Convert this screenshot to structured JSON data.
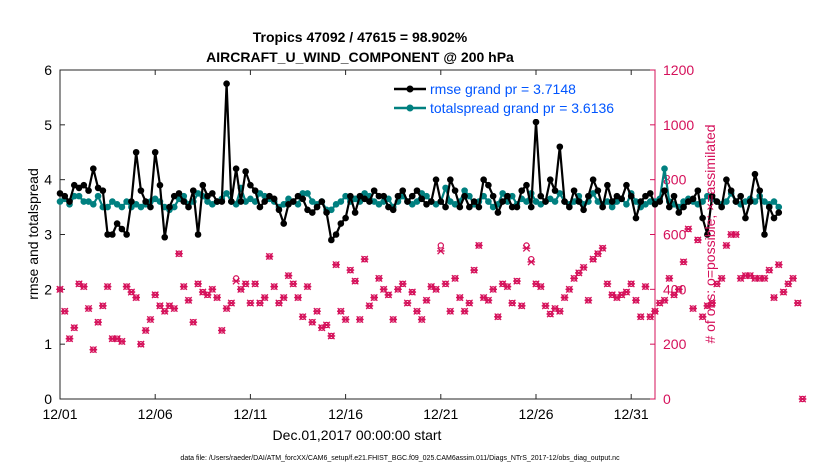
{
  "chart_data": {
    "type": "line",
    "title_line1": "Tropics 47092 / 47615 = 98.902%",
    "title_line2": "AIRCRAFT_U_WIND_COMPONENT @ 200 hPa",
    "xlabel": "Dec.01,2017 00:00:00 start",
    "ylabel_left": "rmse and totalspread",
    "ylabel_right": "# of obs: o=possible; ×=assimilated",
    "x_ticks": [
      "12/01",
      "12/06",
      "12/11",
      "12/16",
      "12/21",
      "12/26",
      "12/31"
    ],
    "x_tick_days": [
      0,
      5,
      10,
      15,
      20,
      25,
      30
    ],
    "xlim": [
      0,
      31.25
    ],
    "ylim_left": [
      0,
      6
    ],
    "y_ticks_left": [
      "0",
      "1",
      "2",
      "3",
      "4",
      "5",
      "6"
    ],
    "ylim_right": [
      0,
      1200
    ],
    "y_ticks_right": [
      "0",
      "200",
      "400",
      "600",
      "800",
      "1000",
      "1200"
    ],
    "footnote": "data file: /Users/raeder/DAI/ATM_forcXX/CAM6_setup/f.e21.FHIST_BGC.f09_025.CAM6assim.011/Diags_NTrS_2017-12/obs_diag_output.nc",
    "legend": [
      {
        "name": "rmse grand pr = 3.7148",
        "color": "#000000"
      },
      {
        "name": "totalspread grand pr = 3.6136",
        "color": "#008080"
      }
    ],
    "colors": {
      "rmse": "#000000",
      "spread": "#008080",
      "obs": "#d5105a",
      "legend_text": "#0055ff"
    },
    "series": [
      {
        "name": "rmse",
        "x0": 0,
        "dx": 0.25,
        "values": [
          3.75,
          3.7,
          3.6,
          3.9,
          3.85,
          3.9,
          3.8,
          4.2,
          3.85,
          3.8,
          3.0,
          3.0,
          3.2,
          3.1,
          3.0,
          3.6,
          4.5,
          3.8,
          3.6,
          3.5,
          4.5,
          3.9,
          2.95,
          3.5,
          3.7,
          3.75,
          3.6,
          3.5,
          3.8,
          3.0,
          3.9,
          3.7,
          3.75,
          3.6,
          3.6,
          5.75,
          3.6,
          4.2,
          3.6,
          4.15,
          3.9,
          3.8,
          3.5,
          3.6,
          3.7,
          3.65,
          3.45,
          3.2,
          3.55,
          3.6,
          3.7,
          3.65,
          3.45,
          3.4,
          3.5,
          3.6,
          3.4,
          2.9,
          3.0,
          3.2,
          3.3,
          3.7,
          3.4,
          3.7,
          3.65,
          3.6,
          3.8,
          3.7,
          3.7,
          3.5,
          3.45,
          3.7,
          3.8,
          3.6,
          3.7,
          3.8,
          3.65,
          3.55,
          3.6,
          4.0,
          3.6,
          3.5,
          4.0,
          3.8,
          3.5,
          3.7,
          3.5,
          3.6,
          3.5,
          4.0,
          3.9,
          3.7,
          3.4,
          3.6,
          3.7,
          3.5,
          3.5,
          3.8,
          3.9,
          3.5,
          5.05,
          3.7,
          3.6,
          4.0,
          3.8,
          4.6,
          3.6,
          3.5,
          3.8,
          3.6,
          3.45,
          3.7,
          4.0,
          3.8,
          3.5,
          3.9,
          3.6,
          3.7,
          3.65,
          3.9,
          3.7,
          3.3,
          3.6,
          3.7,
          3.75,
          3.55,
          3.6,
          3.8,
          3.5,
          3.7,
          3.4,
          3.5,
          3.6,
          3.65,
          3.8,
          3.3,
          3.0,
          3.7,
          3.6,
          3.5,
          4.0,
          3.8,
          3.6,
          3.7,
          3.3,
          3.6,
          4.1,
          3.8,
          3.0,
          3.5,
          3.3,
          3.4
        ]
      },
      {
        "name": "totalspread",
        "x0": 0,
        "dx": 0.25,
        "values": [
          3.6,
          3.65,
          3.55,
          3.7,
          3.7,
          3.6,
          3.6,
          3.55,
          3.7,
          3.5,
          3.5,
          3.6,
          3.55,
          3.5,
          3.6,
          3.5,
          3.55,
          3.5,
          3.55,
          3.6,
          3.65,
          3.6,
          3.5,
          3.45,
          3.5,
          3.65,
          3.7,
          3.55,
          3.6,
          3.75,
          3.7,
          3.6,
          3.55,
          3.6,
          3.65,
          3.75,
          3.6,
          3.55,
          3.85,
          3.6,
          3.65,
          3.6,
          3.75,
          3.7,
          3.65,
          3.6,
          3.5,
          3.55,
          3.65,
          3.6,
          3.55,
          3.75,
          3.75,
          3.6,
          3.55,
          3.6,
          3.45,
          3.45,
          3.55,
          3.6,
          3.7,
          3.6,
          3.65,
          3.6,
          3.75,
          3.7,
          3.6,
          3.55,
          3.6,
          3.65,
          3.5,
          3.6,
          3.7,
          3.6,
          3.55,
          3.6,
          3.75,
          3.7,
          3.6,
          3.55,
          3.6,
          3.85,
          3.6,
          3.55,
          3.6,
          3.8,
          3.7,
          3.55,
          3.6,
          3.7,
          3.6,
          3.5,
          3.55,
          3.75,
          3.6,
          3.7,
          3.55,
          3.65,
          3.6,
          3.75,
          3.6,
          3.55,
          3.6,
          3.65,
          3.6,
          3.75,
          3.6,
          3.55,
          3.6,
          3.7,
          3.55,
          3.6,
          3.75,
          3.6,
          3.55,
          3.6,
          3.5,
          3.6,
          3.65,
          3.55,
          3.75,
          3.6,
          3.5,
          3.55,
          3.6,
          3.6,
          3.65,
          4.2,
          3.6,
          3.55,
          3.5,
          3.6,
          3.65,
          3.6,
          3.55,
          3.6,
          3.7,
          3.65,
          3.6,
          3.55,
          3.6,
          3.75,
          3.6,
          3.55,
          3.6,
          3.65,
          3.6,
          3.7,
          3.6,
          3.55,
          3.6,
          3.5
        ]
      },
      {
        "name": "obs_assimilated",
        "x0": 0,
        "dx": 0.25,
        "values": [
          400,
          320,
          220,
          260,
          420,
          410,
          330,
          180,
          280,
          340,
          410,
          220,
          220,
          210,
          410,
          390,
          370,
          200,
          250,
          290,
          380,
          340,
          320,
          340,
          330,
          530,
          410,
          360,
          280,
          420,
          390,
          380,
          400,
          370,
          250,
          330,
          350,
          430,
          400,
          420,
          350,
          420,
          350,
          370,
          520,
          410,
          350,
          370,
          450,
          420,
          370,
          300,
          410,
          280,
          320,
          260,
          270,
          230,
          490,
          320,
          290,
          470,
          430,
          290,
          510,
          340,
          370,
          440,
          400,
          380,
          290,
          400,
          420,
          350,
          390,
          320,
          290,
          360,
          410,
          400,
          540,
          420,
          320,
          440,
          370,
          320,
          350,
          470,
          560,
          370,
          360,
          400,
          300,
          420,
          410,
          350,
          430,
          340,
          550,
          500,
          420,
          410,
          340,
          310,
          330,
          320,
          370,
          400,
          440,
          460,
          480,
          360,
          510,
          530,
          550,
          420,
          380,
          370,
          380,
          390,
          420,
          360,
          300,
          410,
          300,
          320,
          350,
          360,
          440,
          380,
          400,
          500,
          620,
          330,
          580,
          300,
          340,
          350,
          420,
          440,
          560,
          600,
          600,
          440,
          450,
          450,
          440,
          440,
          440,
          470,
          370,
          490,
          390,
          420,
          440,
          350,
          0
        ]
      },
      {
        "name": "obs_possible",
        "x0": 0,
        "dx": 0.25,
        "values": [
          400,
          320,
          220,
          260,
          420,
          410,
          330,
          180,
          280,
          340,
          410,
          220,
          220,
          210,
          410,
          390,
          370,
          200,
          250,
          290,
          380,
          340,
          320,
          340,
          330,
          530,
          410,
          360,
          280,
          420,
          390,
          380,
          400,
          370,
          250,
          330,
          350,
          440,
          400,
          420,
          350,
          420,
          350,
          370,
          520,
          410,
          350,
          370,
          450,
          420,
          370,
          300,
          410,
          280,
          320,
          260,
          270,
          230,
          490,
          320,
          290,
          470,
          430,
          290,
          510,
          340,
          370,
          440,
          400,
          380,
          290,
          400,
          420,
          350,
          390,
          320,
          290,
          360,
          410,
          400,
          560,
          420,
          320,
          440,
          370,
          320,
          350,
          470,
          560,
          370,
          360,
          400,
          300,
          420,
          410,
          350,
          430,
          340,
          560,
          510,
          420,
          410,
          340,
          310,
          330,
          320,
          370,
          400,
          440,
          460,
          480,
          360,
          510,
          530,
          550,
          420,
          380,
          370,
          380,
          390,
          420,
          360,
          300,
          410,
          300,
          320,
          350,
          360,
          440,
          380,
          400,
          500,
          620,
          330,
          580,
          300,
          340,
          350,
          420,
          440,
          560,
          600,
          600,
          440,
          450,
          450,
          440,
          440,
          440,
          470,
          370,
          490,
          390,
          420,
          440,
          350,
          0
        ]
      }
    ]
  }
}
